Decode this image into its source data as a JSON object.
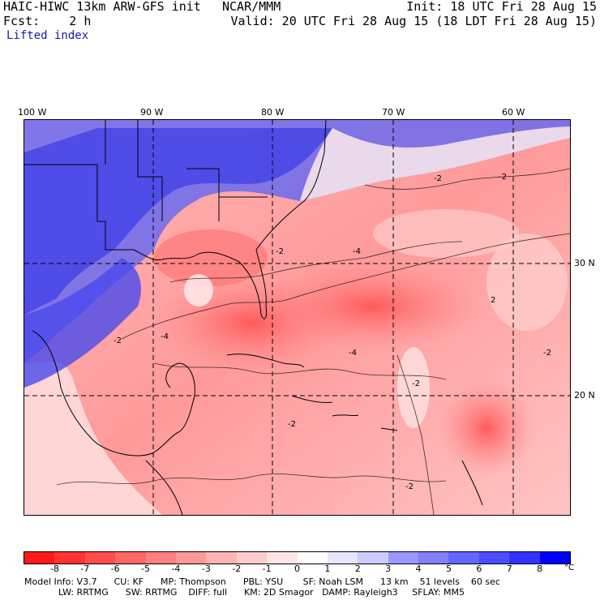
{
  "header": {
    "model_title": "HAIC-HIWC 13km ARW-GFS init",
    "org": "NCAR/MMM",
    "init": "Init: 18 UTC Fri 28 Aug 15",
    "fcst": "Fcst:    2 h",
    "valid": "Valid: 20 UTC Fri 28 Aug 15 (18 LDT Fri 28 Aug 15)",
    "field": "Lifted index"
  },
  "map": {
    "lon_labels": [
      "100 W",
      "90 W",
      "80 W",
      "70 W",
      "60 W"
    ],
    "lat_labels": [
      "30 N",
      "20 N"
    ],
    "contour_labels": [
      "-2",
      "-4",
      "2"
    ]
  },
  "colorbar": {
    "labels": [
      "-8",
      "-7",
      "-6",
      "-5",
      "-4",
      "-3",
      "-2",
      "-1",
      "0",
      "1",
      "2",
      "3",
      "4",
      "5",
      "6",
      "7",
      "8"
    ],
    "unit": "°C",
    "colors": [
      "#ff1a1a",
      "#ff3333",
      "#ff4d4d",
      "#ff6666",
      "#ff8080",
      "#ff9999",
      "#ffb3b3",
      "#ffcccc",
      "#ffe6e6",
      "#ffffff",
      "#e6e6ff",
      "#ccccff",
      "#9999ff",
      "#8080ff",
      "#6666ff",
      "#4d4dff",
      "#3333ff",
      "#0000ff"
    ]
  },
  "model_info": {
    "line1": "Model Info: V3.7      CU: KF      MP: Thompson      PBL: YSU       SF: Noah LSM      13 km    51 levels    60 sec",
    "line2": "LW: RRTMG      SW: RRTMG    DIFF: full      KM: 2D Smagor   DAMP: Rayleigh3     SFLAY: MM5"
  }
}
